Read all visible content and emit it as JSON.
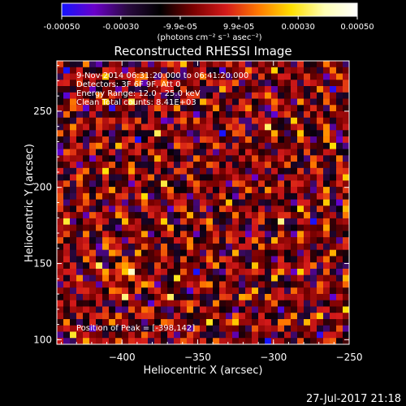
{
  "colorbar": {
    "tick_labels": [
      "-0.00050",
      "-0.00030",
      "-9.9e-05",
      "9.9e-05",
      "0.00030",
      "0.00050"
    ],
    "tick_values": [
      -0.0005,
      -0.0003,
      -9.9e-05,
      9.9e-05,
      0.0003,
      0.0005
    ],
    "range": [
      -0.0005,
      0.0005
    ],
    "unit_label": "(photons cm⁻² s⁻¹ asec⁻²)",
    "colors": [
      "#1414ff",
      "#6a00c8",
      "#2a0a40",
      "#000000",
      "#7a0000",
      "#d41a1a",
      "#ff7a00",
      "#ffe000",
      "#ffffb4",
      "#ffffff"
    ]
  },
  "chart_data": {
    "type": "heatmap",
    "title": "Reconstructed RHESSI Image",
    "xlabel": "Heliocentric X (arcsec)",
    "ylabel": "Heliocentric Y (arcsec)",
    "xlim": [
      -443,
      -250
    ],
    "ylim": [
      97,
      283
    ],
    "xticks": [
      -400,
      -350,
      -300,
      -250
    ],
    "xtick_labels": [
      "−400",
      "−350",
      "−300",
      "−250"
    ],
    "yticks": [
      100,
      150,
      200,
      250
    ],
    "ytick_labels": [
      "100",
      "150",
      "200",
      "250"
    ],
    "peak": [
      -398,
      142
    ],
    "annotations": [
      "9-Nov-2014 06:31:20.000 to 06:41:20.000",
      "Detectors: 3F 6F 9F, Att 0",
      "Energy Range: 12.0 - 25.0 keV",
      "Clean     Total counts: 8.41E+03"
    ],
    "peak_text": "Position of Peak = [-398,142]"
  },
  "footer": {
    "timestamp": "27-Jul-2017 21:18"
  }
}
